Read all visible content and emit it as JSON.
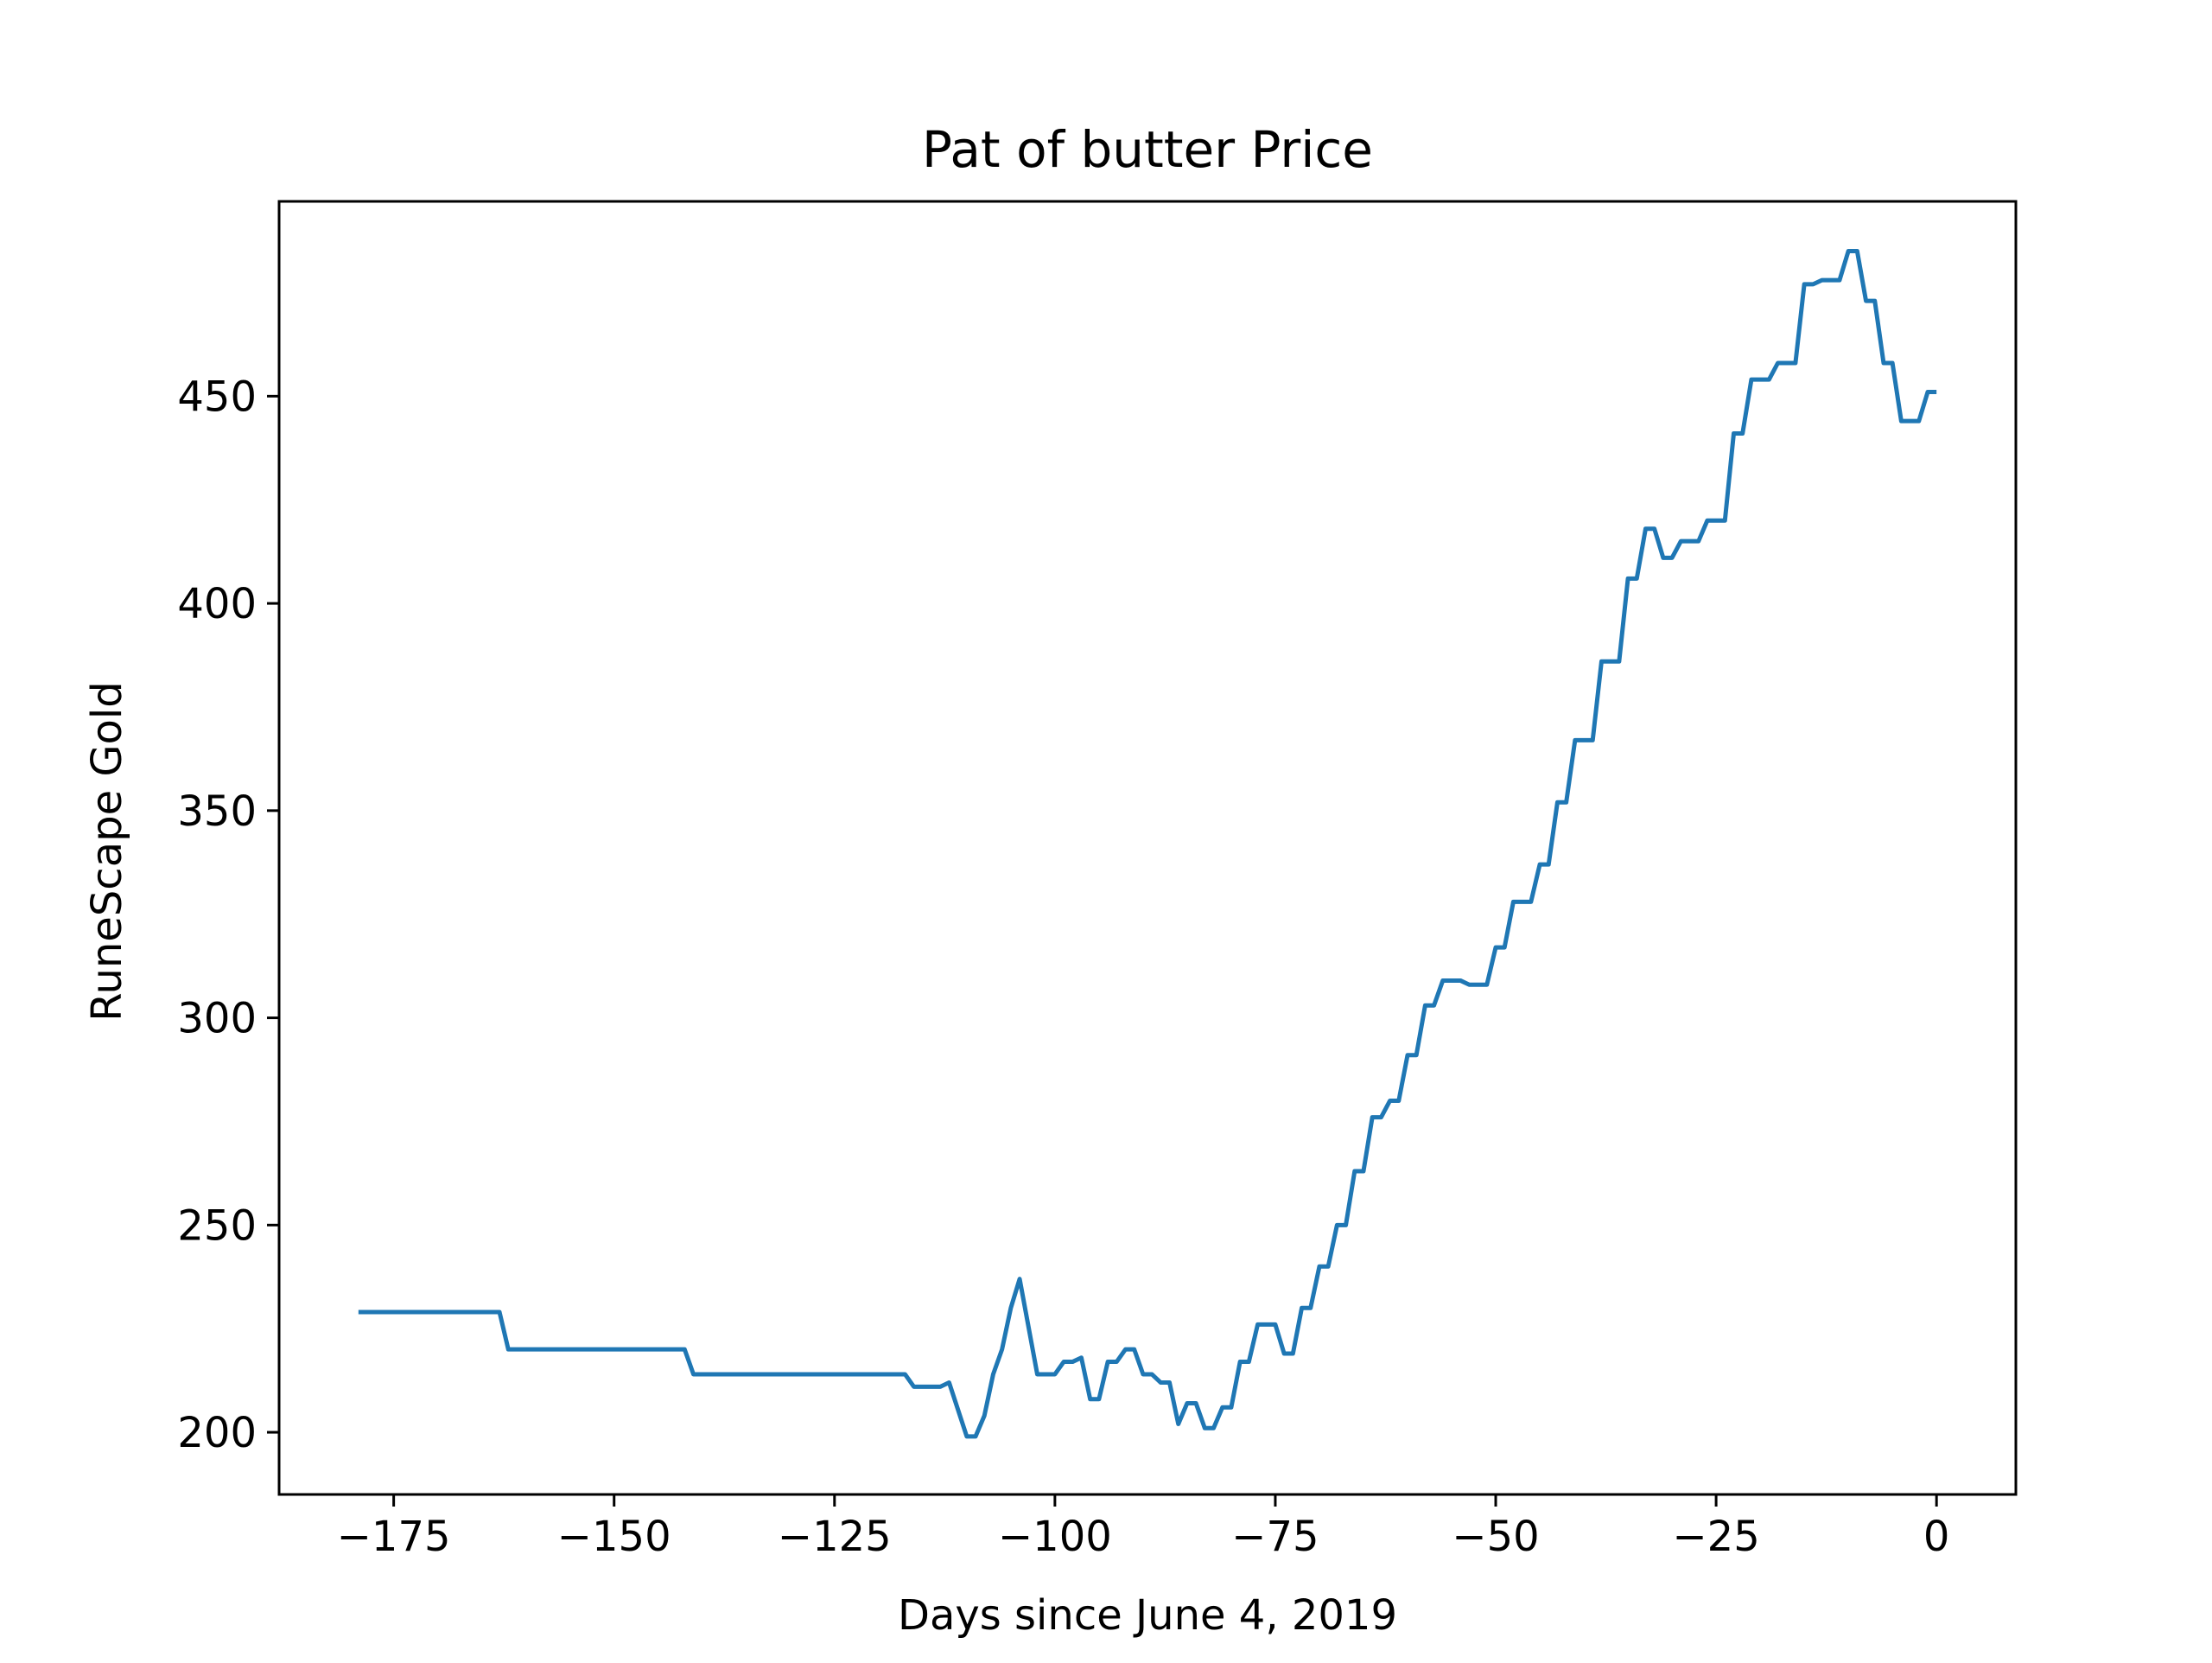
{
  "chart_data": {
    "type": "line",
    "title": "Pat of butter Price",
    "xlabel": "Days since June 4, 2019",
    "ylabel": "RuneScape Gold",
    "xlim": [
      -188,
      9
    ],
    "ylim": [
      185,
      497
    ],
    "xticks": [
      -175,
      -150,
      -125,
      -100,
      -75,
      -50,
      -25,
      0
    ],
    "xtick_labels": [
      "−175",
      "−150",
      "−125",
      "−100",
      "−75",
      "−50",
      "−25",
      "0"
    ],
    "yticks": [
      200,
      250,
      300,
      350,
      400,
      450
    ],
    "ytick_labels": [
      "200",
      "250",
      "300",
      "350",
      "400",
      "450"
    ],
    "grid": false,
    "legend": null,
    "series": [
      {
        "color": "#1f77b4",
        "points": [
          [
            -179,
            229
          ],
          [
            -163,
            229
          ],
          [
            -162,
            220
          ],
          [
            -142,
            220
          ],
          [
            -141,
            214
          ],
          [
            -117,
            214
          ],
          [
            -116,
            211
          ],
          [
            -113,
            211
          ],
          [
            -112,
            212
          ],
          [
            -110,
            199
          ],
          [
            -109,
            199
          ],
          [
            -108,
            204
          ],
          [
            -107,
            214
          ],
          [
            -106,
            220
          ],
          [
            -105,
            230
          ],
          [
            -104,
            237
          ],
          [
            -102,
            214
          ],
          [
            -100,
            214
          ],
          [
            -99,
            217
          ],
          [
            -98,
            217
          ],
          [
            -97,
            218
          ],
          [
            -96,
            208
          ],
          [
            -95,
            208
          ],
          [
            -94,
            217
          ],
          [
            -93,
            217
          ],
          [
            -92,
            220
          ],
          [
            -91,
            220
          ],
          [
            -90,
            214
          ],
          [
            -89,
            214
          ],
          [
            -88,
            212
          ],
          [
            -87,
            212
          ],
          [
            -86,
            202
          ],
          [
            -85,
            207
          ],
          [
            -84,
            207
          ],
          [
            -83,
            201
          ],
          [
            -82,
            201
          ],
          [
            -81,
            206
          ],
          [
            -80,
            206
          ],
          [
            -79,
            217
          ],
          [
            -78,
            217
          ],
          [
            -77,
            226
          ],
          [
            -75,
            226
          ],
          [
            -74,
            219
          ],
          [
            -73,
            219
          ],
          [
            -72,
            230
          ],
          [
            -71,
            230
          ],
          [
            -70,
            240
          ],
          [
            -69,
            240
          ],
          [
            -68,
            250
          ],
          [
            -67,
            250
          ],
          [
            -66,
            263
          ],
          [
            -65,
            263
          ],
          [
            -64,
            276
          ],
          [
            -63,
            276
          ],
          [
            -62,
            280
          ],
          [
            -61,
            280
          ],
          [
            -60,
            291
          ],
          [
            -59,
            291
          ],
          [
            -58,
            303
          ],
          [
            -57,
            303
          ],
          [
            -56,
            309
          ],
          [
            -54,
            309
          ],
          [
            -53,
            308
          ],
          [
            -51,
            308
          ],
          [
            -50,
            317
          ],
          [
            -49,
            317
          ],
          [
            -48,
            328
          ],
          [
            -46,
            328
          ],
          [
            -45,
            337
          ],
          [
            -44,
            337
          ],
          [
            -43,
            352
          ],
          [
            -42,
            352
          ],
          [
            -41,
            367
          ],
          [
            -39,
            367
          ],
          [
            -38,
            386
          ],
          [
            -36,
            386
          ],
          [
            -35,
            406
          ],
          [
            -34,
            406
          ],
          [
            -33,
            418
          ],
          [
            -32,
            418
          ],
          [
            -31,
            411
          ],
          [
            -30,
            411
          ],
          [
            -29,
            415
          ],
          [
            -27,
            415
          ],
          [
            -26,
            420
          ],
          [
            -24,
            420
          ],
          [
            -23,
            441
          ],
          [
            -22,
            441
          ],
          [
            -21,
            454
          ],
          [
            -19,
            454
          ],
          [
            -18,
            458
          ],
          [
            -16,
            458
          ],
          [
            -15,
            477
          ],
          [
            -14,
            477
          ],
          [
            -13,
            478
          ],
          [
            -11,
            478
          ],
          [
            -10,
            485
          ],
          [
            -9,
            485
          ],
          [
            -8,
            473
          ],
          [
            -7,
            473
          ],
          [
            -6,
            458
          ],
          [
            -5,
            458
          ],
          [
            -4,
            444
          ],
          [
            -2,
            444
          ],
          [
            -1,
            451
          ],
          [
            0,
            451
          ]
        ]
      }
    ]
  }
}
